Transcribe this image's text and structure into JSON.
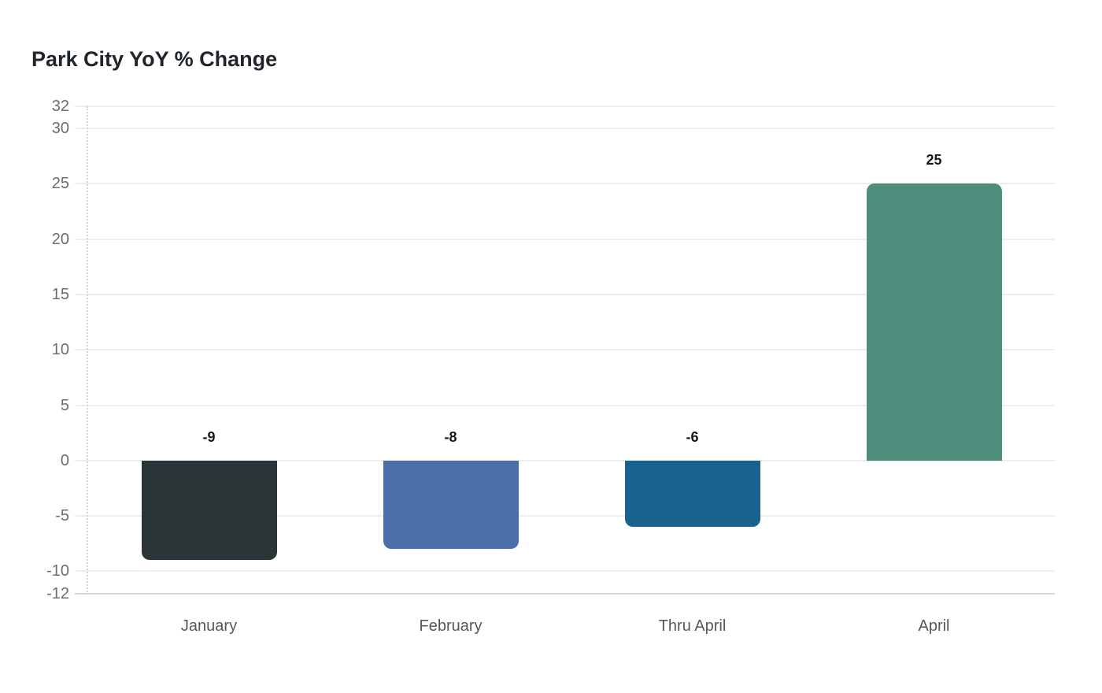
{
  "title": "Park City YoY % Change",
  "chart_data": {
    "type": "bar",
    "title": "Park City YoY % Change",
    "categories": [
      "January",
      "February",
      "Thru April",
      "April"
    ],
    "values": [
      -9,
      -8,
      -6,
      25
    ],
    "value_labels": [
      "-9",
      "-8",
      "-6",
      "25"
    ],
    "bar_colors": [
      "#2b3538",
      "#4b70a9",
      "#19618e",
      "#4d8e7c"
    ],
    "xlabel": "",
    "ylabel": "",
    "ylim": [
      -12,
      32
    ],
    "yticks": [
      32,
      30,
      25,
      20,
      15,
      10,
      5,
      0,
      -5,
      -10,
      -12
    ],
    "grid": true,
    "legend": false,
    "colors": {
      "grid": "#ededed",
      "axis_baseline": "#d8d8d8",
      "y_axis_dotted": "#d4d4d4",
      "tick_label": "#696e73",
      "category_label": "#53585d",
      "value_label": "#16191c",
      "title": "#20252b",
      "background": "#ffffff"
    }
  }
}
